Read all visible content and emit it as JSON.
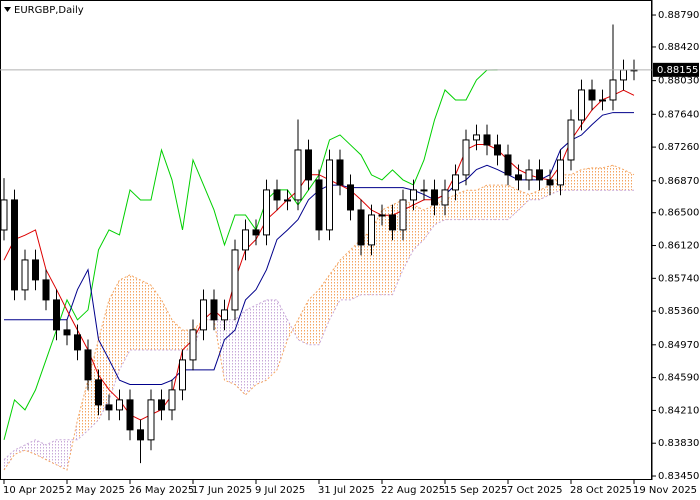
{
  "chart_data": {
    "type": "candlestick",
    "title": "EURGBP,Daily",
    "categories": [
      "10 Apr 2025",
      null,
      null,
      null,
      null,
      null,
      "2 May 2025",
      null,
      null,
      null,
      null,
      null,
      "26 May 2025",
      null,
      null,
      null,
      null,
      null,
      "17 Jun 2025",
      null,
      null,
      null,
      null,
      null,
      "9 Jul 2025",
      null,
      null,
      null,
      null,
      null,
      "31 Jul 2025",
      null,
      null,
      null,
      null,
      null,
      "22 Aug 2025",
      null,
      null,
      null,
      null,
      null,
      "15 Sep 2025",
      null,
      null,
      null,
      null,
      null,
      "7 Oct 2025",
      null,
      null,
      null,
      null,
      null,
      "28 Oct 2025",
      null,
      null,
      null,
      null,
      null,
      "19 Nov 2025"
    ],
    "open": [
      0.863,
      0.86648,
      0.85606,
      0.85953,
      0.85722,
      0.8549,
      0.85143,
      0.85085,
      0.84911,
      0.84564,
      0.84274,
      0.84216,
      0.84332,
      0.83985,
      0.83869,
      0.84332,
      0.84216,
      0.84448,
      0.84795,
      0.85143,
      0.8549,
      0.85259,
      0.85374,
      0.86069,
      0.86301,
      0.86243,
      0.86764,
      0.86648,
      0.86648,
      0.87227,
      0.8688,
      0.86301,
      0.87111,
      0.86822,
      0.86532,
      0.86127,
      0.86474,
      0.86474,
      0.86301,
      0.86648,
      0.86764,
      0.86764,
      0.8659,
      0.86764,
      0.86938,
      0.87343,
      0.87401,
      0.87285,
      0.87169,
      0.86938,
      0.8688,
      0.86996,
      0.8688,
      0.86822,
      0.87111,
      0.87574,
      0.87922,
      0.87806,
      0.87806,
      0.88038,
      0.88153
    ],
    "high": [
      0.869,
      0.86768,
      0.86073,
      0.86073,
      0.85842,
      0.8561,
      0.85263,
      0.85205,
      0.85031,
      0.84684,
      0.84394,
      0.84452,
      0.84452,
      0.84105,
      0.84452,
      0.84452,
      0.84568,
      0.84915,
      0.85263,
      0.8561,
      0.8561,
      0.85494,
      0.86189,
      0.86421,
      0.86421,
      0.86884,
      0.86884,
      0.86768,
      0.8758,
      0.87347,
      0.87,
      0.87231,
      0.87231,
      0.86942,
      0.86652,
      0.86594,
      0.86594,
      0.86594,
      0.86768,
      0.86884,
      0.86884,
      0.86884,
      0.86884,
      0.87058,
      0.87463,
      0.87521,
      0.87521,
      0.87405,
      0.87289,
      0.87058,
      0.87116,
      0.87116,
      0.87,
      0.87231,
      0.87694,
      0.88042,
      0.88042,
      0.87926,
      0.8868,
      0.88273,
      0.88273
    ],
    "low": [
      0.8618,
      0.85486,
      0.85486,
      0.85602,
      0.8537,
      0.85023,
      0.84965,
      0.84791,
      0.84444,
      0.84154,
      0.84096,
      0.84096,
      0.83865,
      0.836,
      0.83749,
      0.84096,
      0.84096,
      0.84328,
      0.84675,
      0.85023,
      0.85139,
      0.85139,
      0.85254,
      0.85949,
      0.86123,
      0.86123,
      0.86528,
      0.86528,
      0.86528,
      0.8676,
      0.86181,
      0.86181,
      0.86702,
      0.86412,
      0.86007,
      0.86007,
      0.86354,
      0.86181,
      0.86181,
      0.86528,
      0.86644,
      0.8647,
      0.8647,
      0.86644,
      0.86818,
      0.87223,
      0.87165,
      0.87049,
      0.86818,
      0.8676,
      0.8676,
      0.8676,
      0.86702,
      0.86702,
      0.86991,
      0.87454,
      0.87686,
      0.87686,
      0.87686,
      0.87918,
      0.88035
    ],
    "close": [
      0.86648,
      0.85606,
      0.85953,
      0.85722,
      0.8549,
      0.85143,
      0.85085,
      0.84911,
      0.84564,
      0.84274,
      0.84216,
      0.84332,
      0.83985,
      0.83869,
      0.84332,
      0.84216,
      0.84448,
      0.84795,
      0.85143,
      0.8549,
      0.85259,
      0.85374,
      0.86069,
      0.86301,
      0.86243,
      0.86764,
      0.86648,
      0.86648,
      0.87227,
      0.8688,
      0.86301,
      0.87111,
      0.86822,
      0.86532,
      0.86127,
      0.86474,
      0.86474,
      0.86301,
      0.86648,
      0.86764,
      0.86764,
      0.8659,
      0.86764,
      0.86938,
      0.87343,
      0.87401,
      0.87285,
      0.87169,
      0.86938,
      0.8688,
      0.86996,
      0.8688,
      0.86822,
      0.87111,
      0.87574,
      0.87922,
      0.87806,
      0.87806,
      0.88038,
      0.88153,
      0.88155
    ],
    "up_color": "#ffffff",
    "down_color": "#000000",
    "cloud": {
      "up_color": "#f4a460",
      "down_color": "#c8a8d8",
      "span_a": [
        0.8352,
        0.837,
        0.8375,
        0.837,
        0.8364,
        0.8358,
        0.8352,
        0.841,
        0.8456,
        0.8503,
        0.8549,
        0.8572,
        0.8578,
        0.8572,
        0.8566,
        0.8549,
        0.8526,
        0.8514,
        0.8514,
        0.8526,
        0.8526,
        0.8456,
        0.8451,
        0.8439,
        0.8451,
        0.8456,
        0.8468,
        0.8503,
        0.8526,
        0.8549,
        0.8561,
        0.8578,
        0.8595,
        0.8607,
        0.8619,
        0.863,
        0.8653,
        0.8659,
        0.8665,
        0.8659,
        0.8653,
        0.8659,
        0.8665,
        0.8671,
        0.8676,
        0.8676,
        0.8682,
        0.8682,
        0.8682,
        0.8676,
        0.8671,
        0.8676,
        0.8682,
        0.8694,
        0.8694,
        0.87,
        0.8702,
        0.8702,
        0.8705,
        0.87,
        0.8694
      ],
      "span_b": [
        0.8364,
        0.8375,
        0.8381,
        0.8387,
        0.8381,
        0.8387,
        0.8387,
        0.8387,
        0.8398,
        0.841,
        0.8433,
        0.8468,
        0.8491,
        0.8491,
        0.8491,
        0.8491,
        0.8491,
        0.8491,
        0.8491,
        0.8526,
        0.8526,
        0.8526,
        0.8526,
        0.8537,
        0.8543,
        0.8549,
        0.8549,
        0.8526,
        0.8503,
        0.8497,
        0.8497,
        0.8526,
        0.8549,
        0.8549,
        0.8555,
        0.8555,
        0.8555,
        0.8555,
        0.8584,
        0.8607,
        0.8619,
        0.8636,
        0.8642,
        0.8642,
        0.8642,
        0.8642,
        0.8642,
        0.8642,
        0.8642,
        0.8653,
        0.8665,
        0.8665,
        0.8671,
        0.8676,
        0.8676,
        0.8676,
        0.8676,
        0.8676,
        0.8676,
        0.8676,
        0.8676
      ]
    },
    "series": [
      {
        "color": "#00d000",
        "values": [
          0.83869,
          0.84332,
          0.84216,
          0.84448,
          0.84795,
          0.85143,
          0.8549,
          0.85259,
          0.85374,
          0.86069,
          0.86301,
          0.86243,
          0.86764,
          0.86648,
          0.86648,
          0.87227,
          0.8688,
          0.86301,
          0.87111,
          0.86822,
          0.86532,
          0.86127,
          0.86474,
          0.86474,
          0.86301,
          0.86648,
          0.86764,
          0.86764,
          0.8659,
          0.86764,
          0.86938,
          0.87343,
          0.87401,
          0.87285,
          0.87169,
          0.86938,
          0.8688,
          0.86996,
          0.8688,
          0.86822,
          0.87111,
          0.87574,
          0.87922,
          0.87806,
          0.87806,
          0.88038,
          0.88153,
          0.88155,
          null,
          null,
          null,
          null,
          null,
          null,
          null,
          null,
          null,
          null,
          null,
          null,
          null
        ]
      },
      {
        "color": "#00008b",
        "values": [
          0.8526,
          0.8526,
          0.8526,
          0.8526,
          0.8526,
          0.8526,
          0.8526,
          0.8561,
          0.8584,
          0.8503,
          0.848,
          0.8456,
          0.8451,
          0.8451,
          0.8451,
          0.8451,
          0.8456,
          0.8468,
          0.8468,
          0.8468,
          0.8468,
          0.8503,
          0.8514,
          0.8549,
          0.8561,
          0.8584,
          0.8619,
          0.863,
          0.8642,
          0.8665,
          0.8676,
          0.8682,
          0.8682,
          0.8679,
          0.8679,
          0.8679,
          0.8679,
          0.8679,
          0.8679,
          0.8676,
          0.8671,
          0.8665,
          0.8671,
          0.8682,
          0.8688,
          0.87,
          0.8705,
          0.87,
          0.8694,
          0.8688,
          0.8688,
          0.8688,
          0.8694,
          0.8723,
          0.8734,
          0.874,
          0.8752,
          0.8763,
          0.8766,
          0.8766,
          0.8766
        ]
      },
      {
        "color": "#dd0000",
        "values": [
          0.8595,
          0.8619,
          0.8624,
          0.863,
          0.8584,
          0.8561,
          0.8537,
          0.8514,
          0.8491,
          0.8462,
          0.8445,
          0.8433,
          0.8416,
          0.841,
          0.8416,
          0.8422,
          0.8439,
          0.8491,
          0.8503,
          0.8526,
          0.8537,
          0.8526,
          0.8572,
          0.8607,
          0.8619,
          0.8642,
          0.8653,
          0.8665,
          0.8676,
          0.8694,
          0.8694,
          0.8688,
          0.8682,
          0.8676,
          0.8665,
          0.8653,
          0.8647,
          0.8647,
          0.8653,
          0.8659,
          0.8665,
          0.8665,
          0.8671,
          0.8694,
          0.8723,
          0.8729,
          0.8729,
          0.8723,
          0.8711,
          0.87,
          0.8694,
          0.869,
          0.8688,
          0.8705,
          0.8734,
          0.8752,
          0.8769,
          0.8781,
          0.8786,
          0.8792,
          0.8786
        ]
      }
    ],
    "last_price": 0.88155,
    "ylim": [
      0.83404,
      0.88964
    ],
    "yticks": [
      {
        "value": 0.8879,
        "label": "0.88790"
      },
      {
        "value": 0.8842,
        "label": "0.88420"
      },
      {
        "value": 0.8803,
        "label": "0.88030"
      },
      {
        "value": 0.8764,
        "label": "0.87640"
      },
      {
        "value": 0.8726,
        "label": "0.87260"
      },
      {
        "value": 0.8687,
        "label": "0.86870"
      },
      {
        "value": 0.865,
        "label": "0.86500"
      },
      {
        "value": 0.8612,
        "label": "0.86120"
      },
      {
        "value": 0.8574,
        "label": "0.85740"
      },
      {
        "value": 0.8536,
        "label": "0.85360"
      },
      {
        "value": 0.8497,
        "label": "0.84970"
      },
      {
        "value": 0.8459,
        "label": "0.84590"
      },
      {
        "value": 0.8421,
        "label": "0.84210"
      },
      {
        "value": 0.8383,
        "label": "0.83830"
      },
      {
        "value": 0.8345,
        "label": "0.83450"
      }
    ]
  }
}
